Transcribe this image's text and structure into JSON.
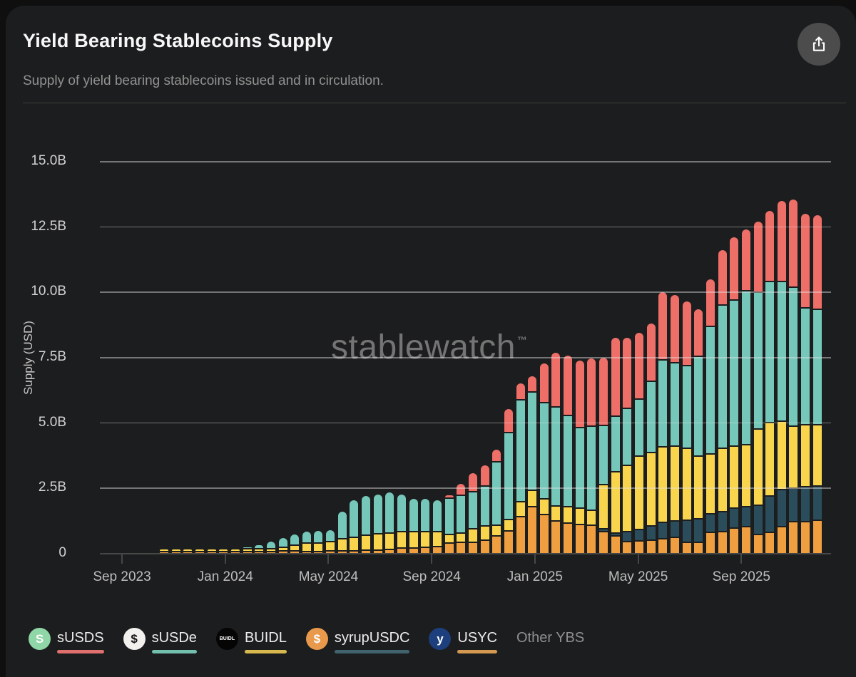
{
  "header": {
    "title": "Yield Bearing Stablecoins Supply",
    "subtitle": "Supply of yield bearing stablecoins issued and in circulation."
  },
  "watermark": {
    "text": "stablewatch",
    "tm": "™"
  },
  "colors": {
    "background_outer": "#0f0f10",
    "card": "#1c1d1e",
    "gridline": "rgba(228,228,228,0.45)",
    "zero_line": "#474747"
  },
  "chart_data": {
    "type": "bar",
    "stacked": true,
    "title": "Yield Bearing Stablecoins Supply",
    "ylabel": "Supply (USD)",
    "ylim": [
      0,
      15
    ],
    "unit": "billions USD",
    "grid": "horizontal, drawn over bars",
    "y_tick_values": [
      0,
      2.5,
      5,
      7.5,
      10,
      12.5,
      15
    ],
    "y_tick_labels": [
      "0",
      "2.5B",
      "5.0B",
      "7.5B",
      "10.0B",
      "12.5B",
      "15.0B"
    ],
    "x_tick_labels": [
      "Sep 2023",
      "Jan 2024",
      "May 2024",
      "Sep 2024",
      "Jan 2025",
      "May 2025",
      "Sep 2025"
    ],
    "bars_note": "≈biweekly bars, estimated from axis, spanning mid-Oct 2023 to late Nov 2025",
    "series_order_bottom_to_top": [
      "USYC",
      "syrupUSDC",
      "BUIDL",
      "sUSDe",
      "sUSDS"
    ],
    "series_colors": {
      "USYC": "#ef9f40",
      "syrupUSDC": "#2b4d5b",
      "BUIDL": "#f8d54c",
      "sUSDe": "#74c7b9",
      "sUSDS": "#ee6e68"
    },
    "bars": [
      [
        0.04,
        0,
        0.02,
        0,
        0
      ],
      [
        0.04,
        0,
        0.02,
        0,
        0
      ],
      [
        0.05,
        0,
        0.02,
        0,
        0
      ],
      [
        0.05,
        0,
        0.03,
        0,
        0
      ],
      [
        0.05,
        0,
        0.03,
        0,
        0
      ],
      [
        0.05,
        0,
        0.04,
        0,
        0
      ],
      [
        0.06,
        0,
        0.04,
        0,
        0
      ],
      [
        0.06,
        0,
        0.05,
        0.05,
        0
      ],
      [
        0.06,
        0,
        0.06,
        0.15,
        0
      ],
      [
        0.06,
        0,
        0.08,
        0.25,
        0
      ],
      [
        0.07,
        0,
        0.12,
        0.35,
        0
      ],
      [
        0.07,
        0,
        0.2,
        0.42,
        0
      ],
      [
        0.06,
        0,
        0.28,
        0.45,
        0
      ],
      [
        0.06,
        0,
        0.3,
        0.44,
        0
      ],
      [
        0.07,
        0,
        0.33,
        0.45,
        0
      ],
      [
        0.07,
        0,
        0.45,
        1.03,
        0
      ],
      [
        0.08,
        0,
        0.5,
        1.42,
        0
      ],
      [
        0.1,
        0,
        0.55,
        1.5,
        0
      ],
      [
        0.12,
        0,
        0.58,
        1.5,
        0
      ],
      [
        0.15,
        0,
        0.6,
        1.55,
        0
      ],
      [
        0.18,
        0,
        0.62,
        1.4,
        0
      ],
      [
        0.2,
        0,
        0.6,
        1.25,
        0
      ],
      [
        0.22,
        0,
        0.58,
        1.25,
        0
      ],
      [
        0.25,
        0,
        0.55,
        1.2,
        0
      ],
      [
        0.37,
        0,
        0.31,
        1.37,
        0.1
      ],
      [
        0.4,
        0,
        0.35,
        1.4,
        0.45
      ],
      [
        0.42,
        0,
        0.48,
        1.4,
        0.7
      ],
      [
        0.48,
        0,
        0.52,
        1.5,
        0.8
      ],
      [
        0.65,
        0,
        0.4,
        2.4,
        0.45
      ],
      [
        0.85,
        0,
        0.4,
        3.3,
        0.9
      ],
      [
        1.4,
        0,
        0.55,
        3.85,
        0.65
      ],
      [
        1.77,
        0,
        0.6,
        3.73,
        0.6
      ],
      [
        1.47,
        0,
        0.58,
        3.65,
        1.5
      ],
      [
        1.23,
        0,
        0.54,
        3.78,
        2.05
      ],
      [
        1.14,
        0,
        0.6,
        3.46,
        2.3
      ],
      [
        1.1,
        0,
        0.6,
        3.04,
        2.56
      ],
      [
        1.06,
        0,
        0.54,
        3.2,
        2.6
      ],
      [
        0.82,
        0.08,
        1.66,
        2.24,
        2.6
      ],
      [
        0.65,
        0.1,
        2.3,
        2.1,
        3.0
      ],
      [
        0.45,
        0.35,
        2.5,
        2.15,
        2.7
      ],
      [
        0.46,
        0.41,
        2.78,
        2.15,
        2.55
      ],
      [
        0.5,
        0.5,
        2.8,
        2.7,
        2.2
      ],
      [
        0.55,
        0.59,
        2.86,
        3.3,
        2.6
      ],
      [
        0.6,
        0.6,
        2.85,
        3.15,
        2.6
      ],
      [
        0.4,
        0.83,
        2.72,
        3.15,
        2.45
      ],
      [
        0.4,
        0.88,
        2.37,
        3.8,
        1.8
      ],
      [
        0.79,
        0.68,
        2.26,
        4.87,
        1.8
      ],
      [
        0.82,
        0.73,
        2.4,
        5.45,
        2.1
      ],
      [
        0.95,
        0.75,
        2.35,
        5.55,
        2.4
      ],
      [
        1.0,
        0.74,
        2.36,
        5.85,
        2.35
      ],
      [
        0.7,
        1.1,
        2.9,
        5.2,
        2.7
      ],
      [
        0.8,
        1.35,
        2.8,
        5.35,
        2.7
      ],
      [
        1.0,
        1.4,
        2.6,
        5.3,
        3.1
      ],
      [
        1.2,
        1.25,
        2.35,
        5.3,
        3.35
      ],
      [
        1.2,
        1.3,
        2.35,
        4.45,
        3.6
      ],
      [
        1.25,
        1.3,
        2.3,
        4.4,
        3.6
      ]
    ]
  },
  "legend": [
    {
      "label": "sUSDS",
      "underline": "#df706d",
      "icon_bg": "#8fd7a6",
      "icon_glyph": "S",
      "icon_fg": "#ffffff",
      "muted": false
    },
    {
      "label": "sUSDe",
      "underline": "#72bfae",
      "icon_bg": "#f2f1ee",
      "icon_glyph": "$",
      "icon_fg": "#161616",
      "muted": false
    },
    {
      "label": "BUIDL",
      "underline": "#d8b94e",
      "icon_bg": "#050505",
      "icon_glyph": "BUIDL",
      "icon_fg": "#ffffff",
      "muted": false
    },
    {
      "label": "syrupUSDC",
      "underline": "#41636d",
      "icon_bg": "#e9994b",
      "icon_glyph": "$",
      "icon_fg": "#ffffff",
      "muted": false
    },
    {
      "label": "USYC",
      "underline": "#d49a52",
      "icon_bg": "#1d3f7d",
      "icon_glyph": "y",
      "icon_fg": "#ffffff",
      "muted": false
    },
    {
      "label": "Other YBS",
      "underline": null,
      "icon_bg": null,
      "icon_glyph": null,
      "icon_fg": null,
      "muted": true
    }
  ]
}
